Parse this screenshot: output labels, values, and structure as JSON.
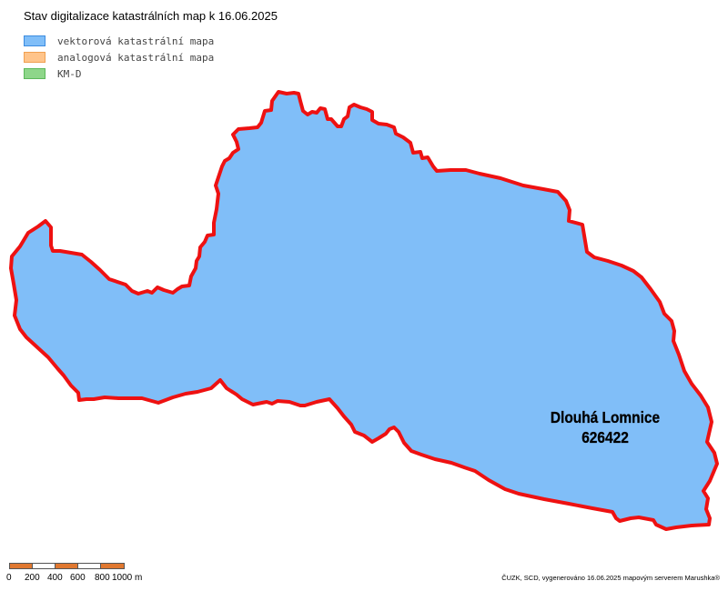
{
  "title": "Stav digitalizace katastrálních map k 16.06.2025",
  "legend": [
    {
      "label": "vektorová katastrální mapa",
      "fill": "#80bef8",
      "stroke": "#3c8ce0"
    },
    {
      "label": "analogová katastrální mapa",
      "fill": "#ffc48a",
      "stroke": "#f0a050"
    },
    {
      "label": "KM-D",
      "fill": "#8ed68a",
      "stroke": "#5cb85a"
    }
  ],
  "area": {
    "name": "Dlouhá Lomnice",
    "code": "626422",
    "fill": "#80bef8",
    "border_color": "#ee1111"
  },
  "scale_bar": {
    "labels": [
      "0",
      "200",
      "400",
      "600",
      "800",
      "1000 m"
    ],
    "colors": [
      "#e07830",
      "#ffffff"
    ]
  },
  "credits": "ČUZK, SCD, vygenerováno 16.06.2025 mapovým serverem Marushka®"
}
